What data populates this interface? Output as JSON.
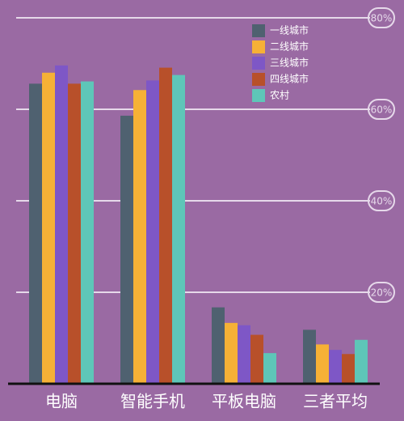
{
  "chart_data": {
    "type": "bar",
    "categories": [
      "电脑",
      "智能手机",
      "平板电脑",
      "三者平均"
    ],
    "series": [
      {
        "name": "一线城市",
        "color": "#4f6170",
        "values": [
          65.6,
          58.6,
          16.7,
          11.8
        ]
      },
      {
        "name": "二线城市",
        "color": "#f6b136",
        "values": [
          68,
          64.2,
          13.3,
          8.6
        ]
      },
      {
        "name": "三线城市",
        "color": "#7e57c6",
        "values": [
          69.6,
          66.3,
          12.8,
          7.4
        ]
      },
      {
        "name": "四线城市",
        "color": "#b8502a",
        "values": [
          65.6,
          69.1,
          10.7,
          6.5
        ]
      },
      {
        "name": "农村",
        "color": "#5ec6b8",
        "values": [
          66.1,
          67.5,
          6.7,
          9.6
        ]
      }
    ],
    "ylim": [
      0,
      80
    ],
    "yticks": [
      {
        "value": 20,
        "label": "20%"
      },
      {
        "value": 40,
        "label": "40%"
      },
      {
        "value": 60,
        "label": "60%"
      },
      {
        "value": 80,
        "label": "80%"
      }
    ],
    "grid": true
  }
}
